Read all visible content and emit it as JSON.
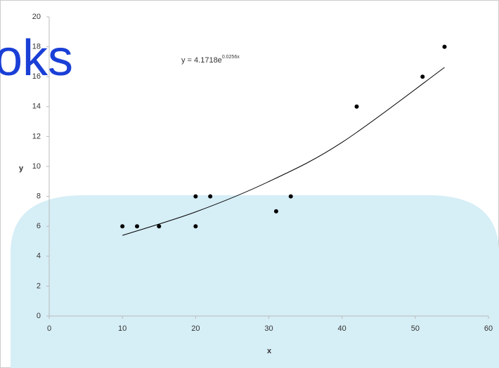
{
  "chart_data": {
    "type": "scatter",
    "x_label": "x",
    "y_label": "y",
    "x": [
      10,
      12,
      15,
      20,
      20,
      22,
      31,
      33,
      42,
      51,
      54
    ],
    "values": [
      6,
      6,
      6,
      8,
      6,
      8,
      7,
      8,
      14,
      16,
      18
    ],
    "color": "#000000",
    "trendline": {
      "x": [
        10,
        20,
        30,
        40,
        54
      ],
      "values": [
        5.39,
        6.96,
        8.99,
        11.61,
        16.62
      ],
      "color": "#000000"
    },
    "annotation": {
      "text": "y = 4.1718e",
      "exponent": "0.0256x"
    },
    "xlim": [
      0,
      60
    ],
    "xticks": [
      0,
      10,
      20,
      30,
      40,
      50,
      60
    ],
    "ylim": [
      0,
      20
    ],
    "yticks": [
      0,
      2,
      4,
      6,
      8,
      10,
      12,
      14,
      16,
      18,
      20
    ],
    "grid": false
  },
  "watermark": "oks"
}
